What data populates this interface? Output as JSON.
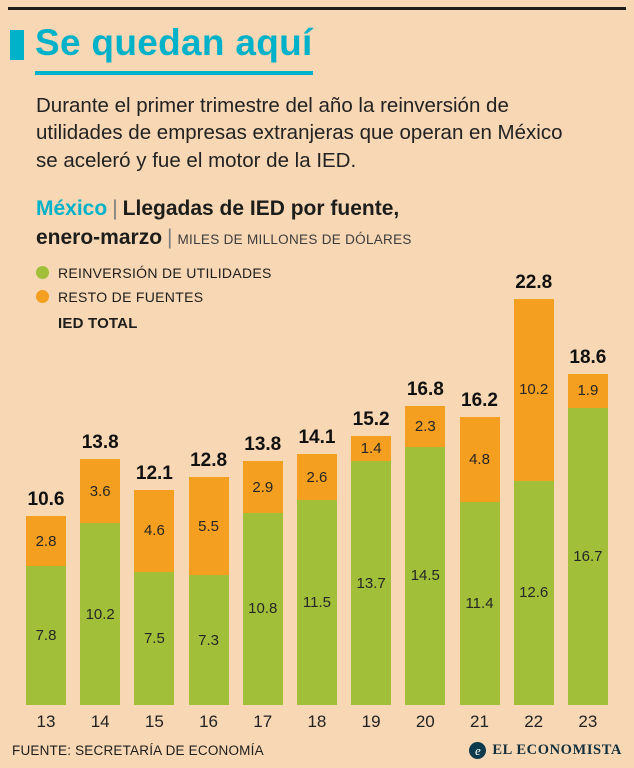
{
  "colors": {
    "background": "#f7d7b4",
    "accent_cyan": "#00b2c9",
    "bar_green": "#a2bf3a",
    "bar_orange": "#f49f1f",
    "text_dark": "#1d1d1b"
  },
  "header": {
    "title": "Se quedan aquí",
    "intro": "Durante el primer trimestre del año la reinversión de utilidades de empresas extranjeras que operan en México se aceleró y fue el motor de la IED."
  },
  "subtitle": {
    "country": "México",
    "sep1": "|",
    "title_line1": "Llegadas de IED por fuente,",
    "title_line2": "enero-marzo",
    "sep2": "|",
    "units": "MILES DE MILLONES DE DÓLARES"
  },
  "legend": {
    "reinversion": "REINVERSIÓN DE UTILIDADES",
    "resto": "RESTO DE FUENTES",
    "total": "IED TOTAL"
  },
  "chart_data": {
    "type": "bar",
    "stacked": true,
    "title": "México | Llegadas de IED por fuente, enero-marzo",
    "units_label": "Miles de millones de dólares",
    "categories": [
      "13",
      "14",
      "15",
      "16",
      "17",
      "18",
      "19",
      "20",
      "21",
      "22",
      "23"
    ],
    "series": [
      {
        "name": "Reinversión de utilidades",
        "color": "#a2bf3a",
        "values": [
          7.8,
          10.2,
          7.5,
          7.3,
          10.8,
          11.5,
          13.7,
          14.5,
          11.4,
          12.6,
          16.7
        ]
      },
      {
        "name": "Resto de fuentes",
        "color": "#f49f1f",
        "values": [
          2.8,
          3.6,
          4.6,
          5.5,
          2.9,
          2.6,
          1.4,
          2.3,
          4.8,
          10.2,
          1.9
        ]
      }
    ],
    "totals": [
      10.6,
      13.8,
      12.1,
      12.8,
      13.8,
      14.1,
      15.2,
      16.8,
      16.2,
      22.8,
      18.6
    ],
    "ylim": [
      0,
      24
    ],
    "grid": false,
    "legend_position": "top-left"
  },
  "footer": {
    "source": "FUENTE: SECRETARÍA DE ECONOMÍA",
    "brand": "EL ECONOMISTA",
    "brand_mark": "e"
  }
}
